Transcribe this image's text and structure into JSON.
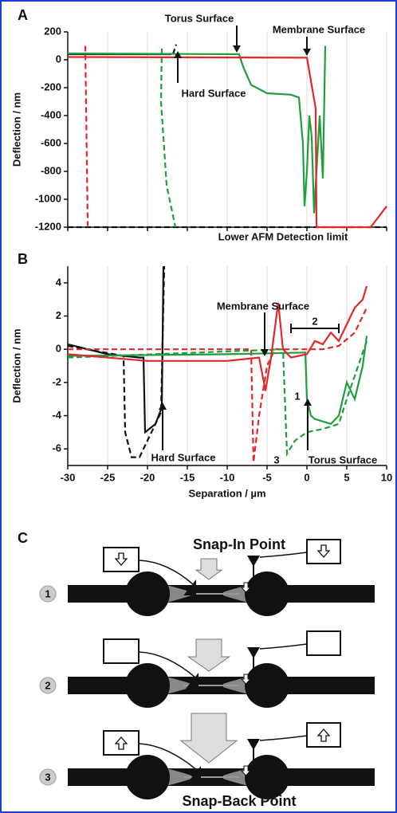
{
  "chart_data": [
    {
      "type": "line",
      "panel_label": "A",
      "ylabel": "Deflection / nm",
      "xlim": [
        -30,
        10
      ],
      "xticks": [
        -30,
        -25,
        -20,
        -15,
        -10,
        -5,
        0,
        5,
        10
      ],
      "show_xtick_labels": false,
      "ylim": [
        -1200,
        200
      ],
      "yticks": [
        200,
        0,
        -200,
        -400,
        -600,
        -800,
        -1000,
        -1200
      ],
      "grid": true,
      "annotations": [
        "Torus Surface",
        "Membrane Surface",
        "Hard Surface",
        "Lower AFM Detection limit"
      ],
      "series": [
        {
          "color": "#111111",
          "dash": false,
          "x": [
            -30,
            -17
          ],
          "values": [
            40,
            40
          ]
        },
        {
          "color": "#111111",
          "dash": true,
          "x": [
            -16.8,
            -16.4
          ],
          "values": [
            40,
            110
          ]
        },
        {
          "color": "#111111",
          "dash": true,
          "x": [
            -30,
            10
          ],
          "values": [
            -1200,
            -1200
          ]
        },
        {
          "color": "#1f9e3c",
          "dash": false,
          "x": [
            -30,
            -8.5,
            -8,
            -7,
            -5,
            -2,
            -1,
            -0.5,
            -0.3,
            0,
            0.3,
            0.6,
            0.9,
            1.3,
            1.6,
            2,
            2.3
          ],
          "values": [
            45,
            40,
            -50,
            -180,
            -240,
            -250,
            -270,
            -600,
            -1050,
            -800,
            -400,
            -550,
            -1100,
            -700,
            -400,
            -850,
            100
          ]
        },
        {
          "color": "#1f9e3c",
          "dash": true,
          "x": [
            -18.2,
            -18.3,
            -17.6,
            -16.5
          ],
          "values": [
            80,
            -300,
            -900,
            -1200
          ]
        },
        {
          "color": "#e3262b",
          "dash": false,
          "x": [
            -30,
            0,
            0.8,
            1.1,
            1.2,
            8,
            10
          ],
          "values": [
            20,
            15,
            -250,
            -350,
            -1200,
            -1200,
            -1050
          ]
        },
        {
          "color": "#e3262b",
          "dash": true,
          "x": [
            -27.8,
            -27.5
          ],
          "values": [
            100,
            -1190
          ]
        }
      ]
    },
    {
      "type": "line",
      "panel_label": "B",
      "ylabel": "Deflection / nm",
      "xlabel": "Separation / µm",
      "xlim": [
        -30,
        10
      ],
      "xticks": [
        -30,
        -25,
        -20,
        -15,
        -10,
        -5,
        0,
        5,
        10
      ],
      "show_xtick_labels": true,
      "ylim": [
        -7,
        5
      ],
      "yticks": [
        4,
        2,
        0,
        -2,
        -4,
        -6
      ],
      "grid": true,
      "annotations": [
        "Membrane Surface",
        "Hard Surface",
        "Torus Surface",
        "1",
        "2",
        "3"
      ],
      "series": [
        {
          "color": "#111111",
          "dash": true,
          "x": [
            -30,
            -23,
            -22.8,
            -22,
            -21,
            -19.5,
            -18.3,
            -17.9
          ],
          "values": [
            0.2,
            -0.4,
            -5,
            -6.5,
            -6.5,
            -5,
            -3.8,
            5
          ]
        },
        {
          "color": "#111111",
          "dash": false,
          "x": [
            -30,
            -25,
            -21,
            -20.5,
            -20.3,
            -19,
            -18.2,
            -18
          ],
          "values": [
            0.3,
            -0.3,
            -0.5,
            -0.5,
            -5,
            -4.5,
            -3.5,
            5
          ]
        },
        {
          "color": "#e3262b",
          "dash": true,
          "x": [
            -30,
            -7,
            -6.7,
            -6,
            -5,
            -4,
            0,
            2,
            4,
            6,
            7.5
          ],
          "values": [
            0,
            0,
            -6.8,
            -4,
            -1,
            0,
            0,
            0,
            0.2,
            1,
            2.5
          ]
        },
        {
          "color": "#1f9e3c",
          "dash": true,
          "x": [
            -30,
            -3,
            -2.5,
            -1.5,
            0,
            2,
            4,
            5,
            7.5
          ],
          "values": [
            -0.5,
            0,
            -6.3,
            -5.5,
            -5,
            -4.8,
            -4.5,
            -3,
            0.5
          ]
        },
        {
          "color": "#1f9e3c",
          "dash": false,
          "x": [
            -30,
            -10,
            -0.2,
            0,
            0.5,
            1,
            3,
            4,
            5,
            6,
            7,
            7.5
          ],
          "values": [
            -0.4,
            -0.3,
            -0.2,
            -3,
            -4,
            -4.2,
            -4.5,
            -4,
            -2,
            -3,
            -1,
            0.8
          ]
        },
        {
          "color": "#e3262b",
          "dash": false,
          "x": [
            -30,
            -20,
            -10,
            -6,
            -5.2,
            -4.5,
            -3.6,
            -3,
            -2,
            0,
            1,
            2,
            3,
            4,
            5,
            6,
            7,
            7.5
          ],
          "values": [
            -0.3,
            -0.7,
            -0.7,
            -0.5,
            -2.5,
            -0.5,
            2.8,
            0,
            -0.5,
            -0.3,
            0.5,
            0.3,
            1,
            0.5,
            1.5,
            2.5,
            3,
            3.8
          ]
        }
      ]
    }
  ],
  "diagram": {
    "label": "C",
    "top_label": "Snap-In Point",
    "bottom_label": "Snap-Back Point",
    "steps": [
      "1",
      "2",
      "3"
    ]
  }
}
